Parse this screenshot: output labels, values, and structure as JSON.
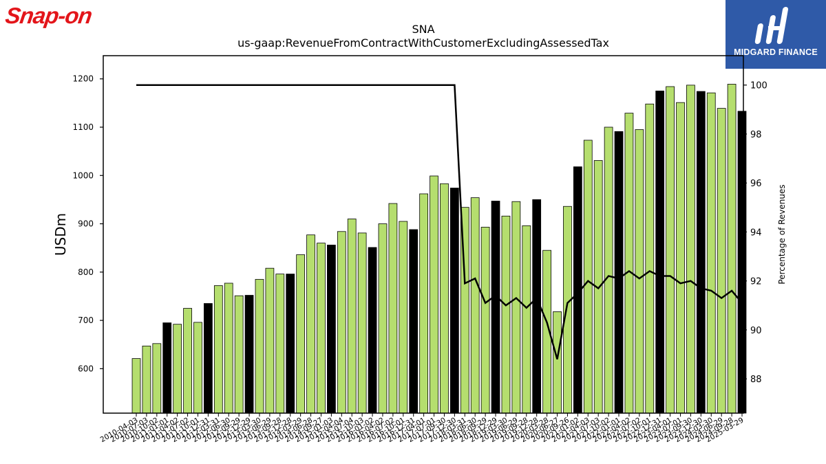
{
  "brand": {
    "company_logo_text": "Snap-on",
    "publisher_logo_text": "MIDGARD FINANCE"
  },
  "colors": {
    "bar": "#b5de6e",
    "bar_highlight": "#000000",
    "line": "#000000",
    "company_red": "#e3151a",
    "publisher_blue": "#2f5aa8"
  },
  "chart_data": {
    "type": "bar",
    "title": "SNA",
    "subtitle": "us-gaap:RevenueFromContractWithCustomerExcludingAssessedTax",
    "ylabel": "USDm",
    "y2label": "Percentage of Revenues",
    "ylim": [
      508,
      1248
    ],
    "y2lim": [
      86.6,
      101.2
    ],
    "yticks": [
      600,
      700,
      800,
      900,
      1000,
      1100,
      1200
    ],
    "y2ticks": [
      88,
      90,
      92,
      94,
      96,
      98,
      100
    ],
    "categories": [
      "2010-04-03",
      "2010-07-03",
      "2010-10-02",
      "2011-01-01",
      "2011-04-02",
      "2011-07-02",
      "2011-10-01",
      "2011-12-31",
      "2012-03-31",
      "2012-06-30",
      "2012-09-29",
      "2012-12-29",
      "2013-03-30",
      "2013-06-29",
      "2013-09-28",
      "2013-12-28",
      "2014-03-29",
      "2014-06-28",
      "2014-09-27",
      "2015-01-03",
      "2015-04-04",
      "2015-07-04",
      "2015-10-03",
      "2016-01-02",
      "2016-04-02",
      "2016-07-02",
      "2016-10-01",
      "2016-12-31",
      "2017-04-01",
      "2017-07-01",
      "2017-09-30",
      "2017-12-30",
      "2018-03-31",
      "2018-06-30",
      "2018-09-29",
      "2018-12-29",
      "2019-03-30",
      "2019-06-29",
      "2019-09-28",
      "2019-12-28",
      "2020-03-28",
      "2020-06-27",
      "2020-09-26",
      "2021-01-02",
      "2021-04-03",
      "2021-07-03",
      "2021-10-02",
      "2022-01-01",
      "2022-04-02",
      "2022-07-02",
      "2022-10-01",
      "2022-12-31",
      "2023-04-01",
      "2023-07-01",
      "2023-09-30",
      "2023-12-30",
      "2024-03-30",
      "2024-06-29",
      "2024-09-28",
      "2025-03-29"
    ],
    "tick_labels_shown": [
      "2010-04-03",
      "2010-07-03",
      "2010-10-02",
      "2011-01-01",
      "2011-04-02",
      "2011-07-02",
      "2011-10-01",
      "2011-12-31",
      "2012-03-31",
      "2012-06-30",
      "2012-09-29",
      "2012-12-29",
      "2013-03-30",
      "2013-06-29",
      "2013-09-28",
      "2013-12-28",
      "2014-03-29",
      "2014-06-28",
      "2014-09-27",
      "2015-01-03",
      "2015-04-04",
      "2015-07-04",
      "2015-10-03",
      "2016-01-02",
      "2016-04-02",
      "2016-07-02",
      "2016-10-01",
      "2016-12-31",
      "2017-04-01",
      "2017-07-01",
      "2017-09-30",
      "2017-12-30",
      "2018-03-31",
      "2018-06-30",
      "2018-09-29",
      "2018-12-29",
      "2019-03-30",
      "2019-06-29",
      "2019-09-28",
      "2019-12-28",
      "2020-03-28",
      "2020-06-27",
      "2020-09-26",
      "2021-01-02",
      "2021-04-03",
      "2021-07-03",
      "2021-10-02",
      "2022-01-01",
      "2022-04-02",
      "2022-07-02",
      "2022-10-01",
      "2022-12-31",
      "2023-04-01",
      "2023-07-01",
      "2023-09-30",
      "2023-12-30",
      "2024-03-30",
      "2024-06-29",
      "2024-09-28",
      "2025-03-29"
    ],
    "values": [
      621,
      647,
      652,
      695,
      692,
      725,
      696,
      735,
      772,
      777,
      751,
      752,
      785,
      808,
      796,
      796,
      836,
      877,
      860,
      856,
      884,
      910,
      881,
      851,
      900,
      942,
      905,
      888,
      962,
      999,
      983,
      974,
      934,
      954,
      893,
      947,
      916,
      946,
      896,
      950,
      845,
      718,
      936,
      1018,
      1073,
      1031,
      1100,
      1091,
      1129,
      1095,
      1148,
      1175,
      1184,
      1151,
      1187,
      1174,
      1171,
      1139,
      1189,
      1133
    ],
    "highlight": [
      false,
      false,
      false,
      true,
      false,
      false,
      false,
      true,
      false,
      false,
      false,
      true,
      false,
      false,
      false,
      true,
      false,
      false,
      false,
      true,
      false,
      false,
      false,
      true,
      false,
      false,
      false,
      true,
      false,
      false,
      false,
      true,
      false,
      false,
      false,
      true,
      false,
      false,
      false,
      true,
      false,
      false,
      false,
      true,
      false,
      false,
      false,
      true,
      false,
      false,
      false,
      true,
      false,
      false,
      false,
      true,
      false,
      false,
      false,
      true
    ],
    "line_values": [
      100,
      100,
      100,
      100,
      100,
      100,
      100,
      100,
      100,
      100,
      100,
      100,
      100,
      100,
      100,
      100,
      100,
      100,
      100,
      100,
      100,
      100,
      100,
      100,
      100,
      100,
      100,
      100,
      100,
      100,
      100,
      100,
      91.9,
      92.1,
      91.1,
      91.4,
      91.0,
      91.3,
      90.9,
      91.3,
      90.3,
      88.8,
      91.1,
      91.5,
      92.0,
      91.7,
      92.2,
      92.1,
      92.4,
      92.1,
      92.4,
      92.2,
      92.2,
      91.9,
      92.0,
      91.7,
      91.6,
      91.3,
      91.6,
      91.1
    ],
    "grid": false,
    "legend": "none"
  }
}
